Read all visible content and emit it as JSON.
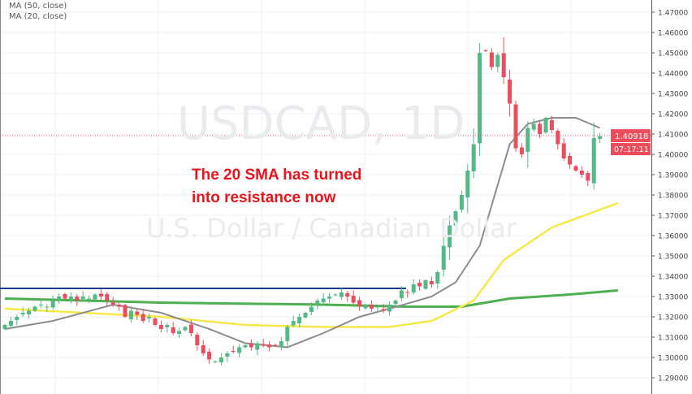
{
  "chart_data": {
    "type": "candlestick",
    "symbol": "USDCAD",
    "interval": "1D",
    "watermark_title": "USDCAD, 1D",
    "watermark_subtitle": "U.S. Dollar / Canadian Dollar",
    "legend": [
      "MA (50, close)",
      "MA (20, close)"
    ],
    "annotation": [
      "The 20 SMA has turned",
      "into resistance now"
    ],
    "ylim": [
      1.285,
      1.475
    ],
    "yticks": [
      "1.47000",
      "1.46000",
      "1.45000",
      "1.44000",
      "1.43000",
      "1.42000",
      "1.41000",
      "1.40000",
      "1.39000",
      "1.38000",
      "1.37000",
      "1.36000",
      "1.35000",
      "1.34000",
      "1.33000",
      "1.32000",
      "1.31000",
      "1.30000",
      "1.29000"
    ],
    "last_price": "1.40918",
    "countdown": "07:17:11",
    "last_price_value": 1.40918,
    "resistance_level": 1.334,
    "closes": [
      1.316,
      1.318,
      1.32,
      1.322,
      1.323,
      1.325,
      1.326,
      1.325,
      1.328,
      1.33,
      1.329,
      1.33,
      1.328,
      1.33,
      1.329,
      1.331,
      1.33,
      1.328,
      1.326,
      1.325,
      1.32,
      1.323,
      1.321,
      1.318,
      1.32,
      1.316,
      1.314,
      1.316,
      1.312,
      1.313,
      1.315,
      1.312,
      1.306,
      1.302,
      1.299,
      1.298,
      1.3,
      1.302,
      1.303,
      1.305,
      1.306,
      1.305,
      1.307,
      1.306,
      1.305,
      1.306,
      1.308,
      1.315,
      1.318,
      1.32,
      1.322,
      1.325,
      1.328,
      1.329,
      1.33,
      1.331,
      1.332,
      1.33,
      1.327,
      1.325,
      1.326,
      1.324,
      1.325,
      1.323,
      1.326,
      1.328,
      1.333,
      1.332,
      1.336,
      1.335,
      1.338,
      1.336,
      1.342,
      1.355,
      1.365,
      1.372,
      1.38,
      1.392,
      1.405,
      1.45,
      1.451,
      1.443,
      1.449,
      1.438,
      1.425,
      1.403,
      1.4,
      1.413,
      1.415,
      1.41,
      1.418,
      1.412,
      1.405,
      1.398,
      1.395,
      1.392,
      1.39,
      1.387,
      1.408,
      1.409
    ],
    "ma20": [
      [
        0,
        1.314
      ],
      [
        8,
        1.318
      ],
      [
        18,
        1.326
      ],
      [
        26,
        1.322
      ],
      [
        34,
        1.314
      ],
      [
        40,
        1.307
      ],
      [
        47,
        1.305
      ],
      [
        53,
        1.312
      ],
      [
        59,
        1.32
      ],
      [
        64,
        1.324
      ],
      [
        71,
        1.33
      ],
      [
        75,
        1.337
      ],
      [
        79,
        1.355
      ],
      [
        82,
        1.385
      ],
      [
        84,
        1.405
      ],
      [
        87,
        1.415
      ],
      [
        91,
        1.418
      ],
      [
        95,
        1.418
      ],
      [
        99,
        1.413
      ]
    ],
    "ma50": [
      [
        0,
        1.324
      ],
      [
        13,
        1.322
      ],
      [
        26,
        1.32
      ],
      [
        40,
        1.316
      ],
      [
        53,
        1.315
      ],
      [
        64,
        1.315
      ],
      [
        71,
        1.318
      ],
      [
        78,
        1.328
      ],
      [
        83,
        1.348
      ],
      [
        91,
        1.364
      ],
      [
        102,
        1.376
      ]
    ],
    "ma_long": [
      [
        0,
        1.329
      ],
      [
        26,
        1.327
      ],
      [
        53,
        1.326
      ],
      [
        67,
        1.325
      ],
      [
        76,
        1.325
      ],
      [
        84,
        1.329
      ],
      [
        94,
        1.331
      ],
      [
        102,
        1.333
      ]
    ],
    "colors": {
      "up": "#53b987",
      "down": "#eb4d5c",
      "ma20": "#8c8c8c",
      "ma50": "#f5e94a",
      "ma_long": "#4caf50",
      "resistance": "#1a3a8f",
      "annotation": "#e8141c"
    }
  }
}
